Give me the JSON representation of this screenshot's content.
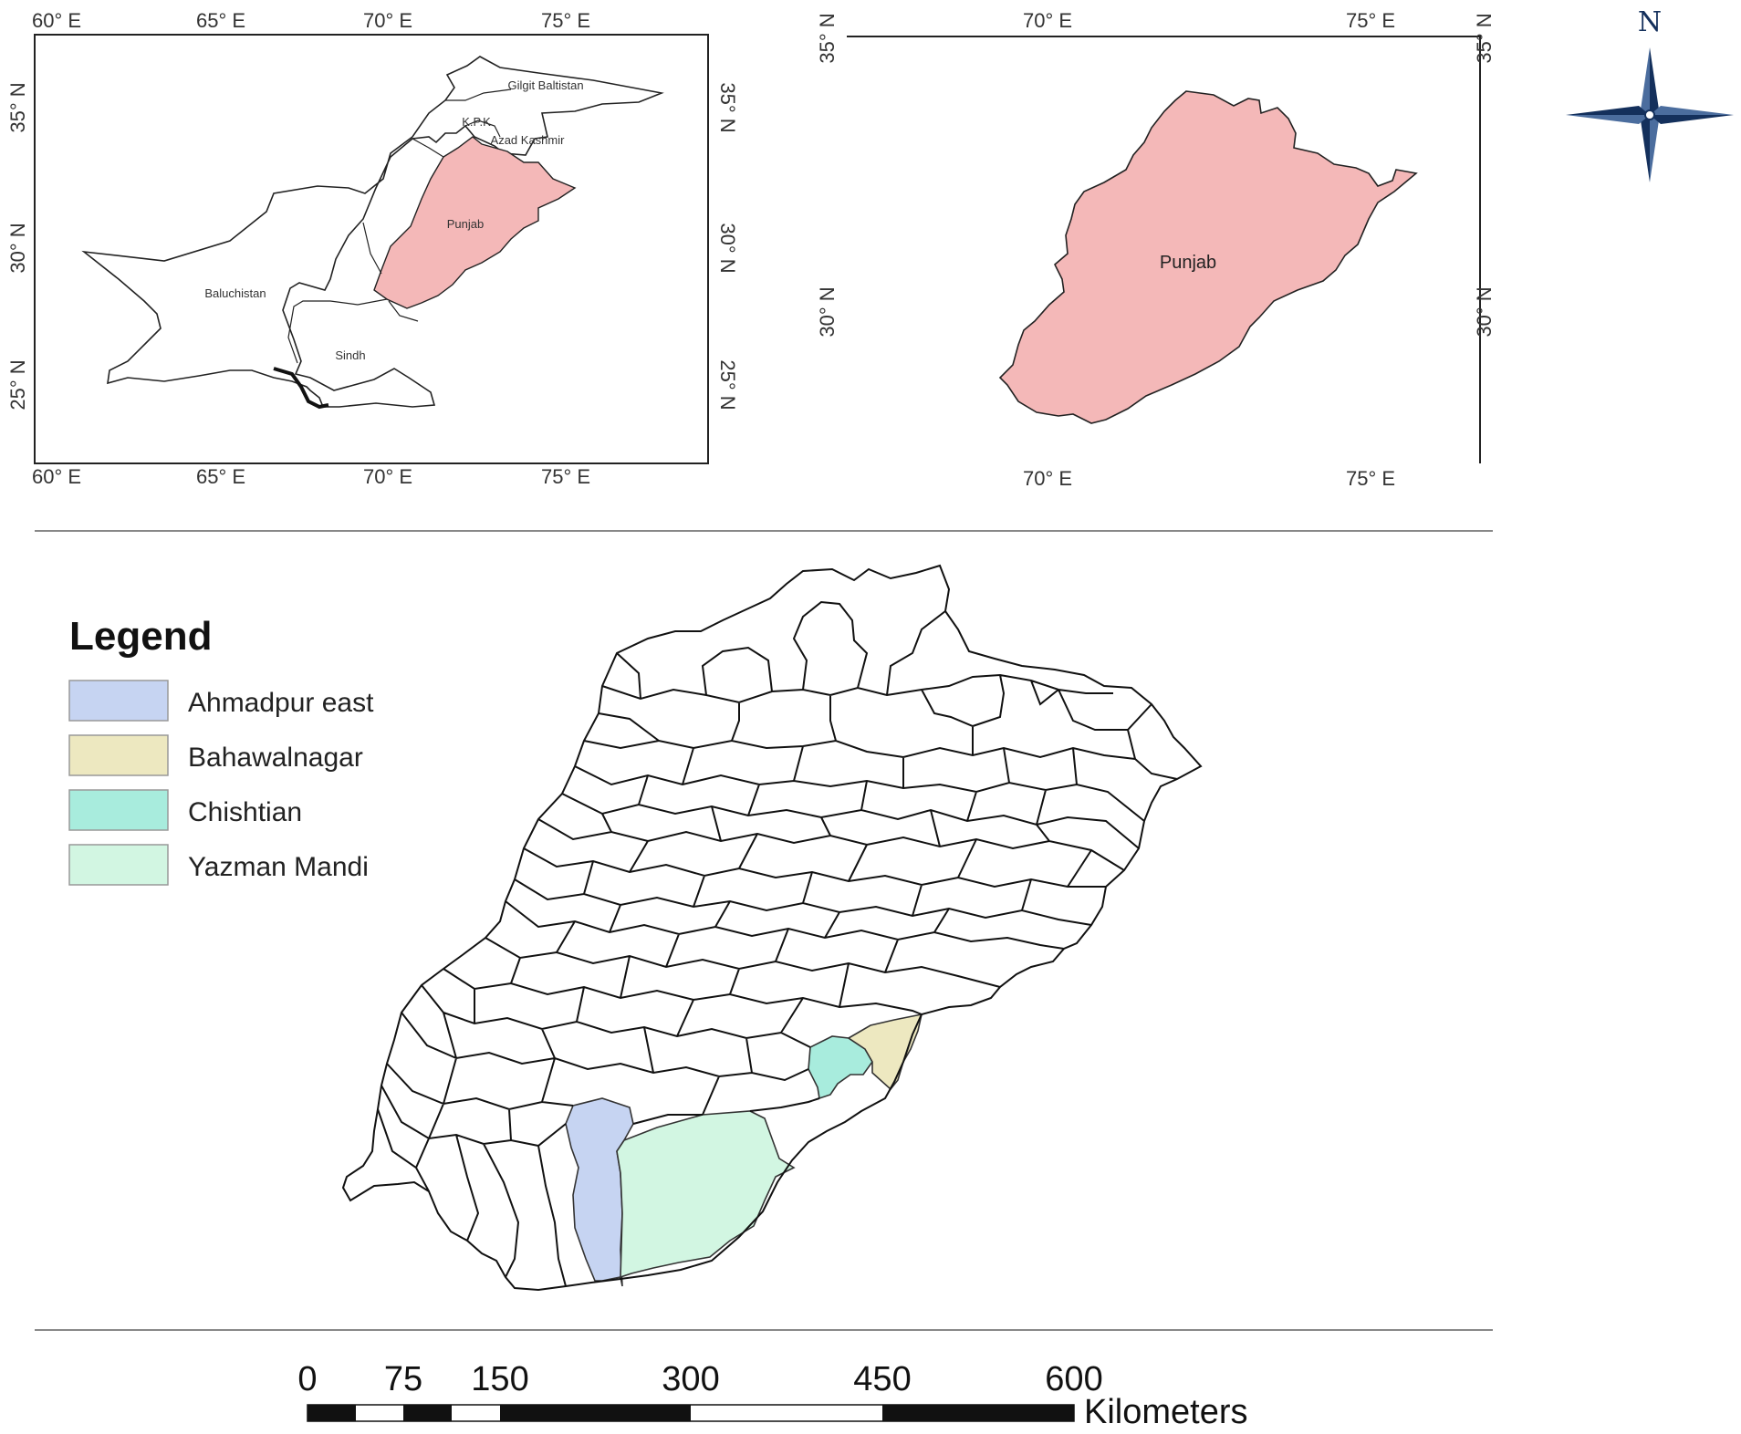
{
  "colors": {
    "punjab_fill": "#f4b8b8",
    "ahmadpur_east": "#c6d4f2",
    "bahawalnagar": "#ede8c0",
    "chishtian": "#a8ecdd",
    "yazman_mandi": "#d2f6e2",
    "north_arrow": "#14305c"
  },
  "inset_pakistan": {
    "x_ticks": [
      "60° E",
      "65° E",
      "70° E",
      "75° E"
    ],
    "y_ticks": [
      "35° N",
      "30° N",
      "25° N"
    ],
    "labels": {
      "gilgit": "Gilgit Baltistan",
      "kpk": "K.P.K",
      "kashmir": "Azad Kashmir",
      "punjab": "Punjab",
      "baluchistan": "Baluchistan",
      "sindh": "Sindh"
    }
  },
  "inset_punjab": {
    "x_ticks": [
      "70° E",
      "75° E"
    ],
    "y_ticks": [
      "35° N",
      "30° N"
    ],
    "label": "Punjab"
  },
  "north_arrow": {
    "letter": "N"
  },
  "legend": {
    "title": "Legend",
    "items": [
      {
        "label": "Ahmadpur east",
        "color_key": "ahmadpur_east"
      },
      {
        "label": "Bahawalnagar",
        "color_key": "bahawalnagar"
      },
      {
        "label": "Chishtian",
        "color_key": "chishtian"
      },
      {
        "label": "Yazman Mandi",
        "color_key": "yazman_mandi"
      }
    ]
  },
  "scale_bar": {
    "ticks": [
      "0",
      "75",
      "150",
      "300",
      "450",
      "600"
    ],
    "unit": "Kilometers"
  }
}
